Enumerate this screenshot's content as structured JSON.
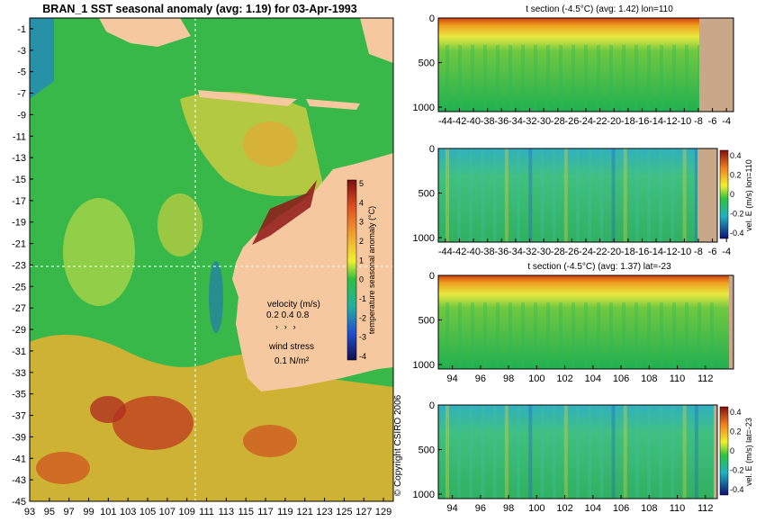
{
  "map": {
    "title": "BRAN_1 SST seasonal anomaly (avg: 1.19) for 03-Apr-1993",
    "y_ticks": [
      -1,
      -3,
      -5,
      -7,
      -9,
      -11,
      -13,
      -15,
      -17,
      -19,
      -21,
      -23,
      -25,
      -27,
      -29,
      -31,
      -33,
      -35,
      -37,
      -39,
      -41,
      -43,
      -45
    ],
    "x_ticks": [
      93,
      95,
      97,
      99,
      101,
      103,
      105,
      107,
      109,
      111,
      113,
      115,
      117,
      119,
      121,
      123,
      125,
      127,
      129
    ],
    "colorbar_label": "temperature seasonal anomaly (°C)",
    "colorbar_ticks": [
      5,
      4,
      3,
      2,
      1,
      0,
      -1,
      -2,
      -3,
      -4
    ],
    "velocity_label": "velocity (m/s)",
    "velocity_scale": "0.2 0.4 0.8",
    "wind_label": "wind stress",
    "wind_scale": "0.1 N/m²",
    "copyright": "© Copyright CSIRO 2006",
    "land_color": "#f5c8a0"
  },
  "panels": [
    {
      "title": "t section (-4.5°C) (avg: 1.42) lon=110",
      "x_ticks": [
        "-44",
        "-42",
        "-40",
        "-38",
        "-36",
        "-34",
        "-32",
        "-30",
        "-28",
        "-26",
        "-24",
        "-22",
        "-20",
        "-18",
        "-16",
        "-14",
        "-12",
        "-10",
        "-8",
        "-6",
        "-4"
      ],
      "y_ticks": [
        "0",
        "500",
        "1000"
      ],
      "cbar_label": "",
      "cbar_ticks": []
    },
    {
      "title": "",
      "x_ticks": [
        "-44",
        "-42",
        "-40",
        "-38",
        "-36",
        "-34",
        "-32",
        "-30",
        "-28",
        "-26",
        "-24",
        "-22",
        "-20",
        "-18",
        "-16",
        "-14",
        "-12",
        "-10",
        "-8",
        "-6",
        "-4"
      ],
      "y_ticks": [
        "0",
        "500",
        "1000"
      ],
      "cbar_label": "vel. E (m/s) lon=110",
      "cbar_ticks": [
        "0.4",
        "0.2",
        "0",
        "-0.2",
        "-0.4"
      ]
    },
    {
      "title": "t section (-4.5°C) (avg: 1.37) lat=-23",
      "x_ticks": [
        "94",
        "96",
        "98",
        "100",
        "102",
        "104",
        "106",
        "108",
        "110",
        "112"
      ],
      "y_ticks": [
        "0",
        "500",
        "1000"
      ],
      "cbar_label": "",
      "cbar_ticks": []
    },
    {
      "title": "",
      "x_ticks": [
        "94",
        "96",
        "98",
        "100",
        "102",
        "104",
        "106",
        "108",
        "110",
        "112"
      ],
      "y_ticks": [
        "0",
        "500",
        "1000"
      ],
      "cbar_label": "vel. E (m/s) lat=-23",
      "cbar_ticks": [
        "0.4",
        "0.2",
        "0",
        "-0.2",
        "-0.4"
      ]
    }
  ],
  "chart_data": [
    {
      "type": "heatmap",
      "title": "BRAN_1 SST seasonal anomaly (avg: 1.19) for 03-Apr-1993",
      "x_range": [
        93,
        130
      ],
      "y_range": [
        -45,
        0
      ],
      "colorbar_label": "temperature seasonal anomaly (°C)",
      "colorbar_range": [
        -4,
        5
      ]
    },
    {
      "type": "heatmap",
      "title": "t section (-4.5°C) (avg: 1.42) lon=110",
      "x_range": [
        -45,
        -3
      ],
      "y_range": [
        0,
        1050
      ]
    },
    {
      "type": "heatmap",
      "x_range": [
        -45,
        -3
      ],
      "y_range": [
        0,
        1050
      ],
      "colorbar_label": "vel. E (m/s) lon=110",
      "colorbar_range": [
        -0.4,
        0.4
      ]
    },
    {
      "type": "heatmap",
      "title": "t section (-4.5°C) (avg: 1.37) lat=-23",
      "x_range": [
        93,
        114
      ],
      "y_range": [
        0,
        1050
      ]
    },
    {
      "type": "heatmap",
      "x_range": [
        93,
        114
      ],
      "y_range": [
        0,
        1050
      ],
      "colorbar_label": "vel. E (m/s) lat=-23",
      "colorbar_range": [
        -0.4,
        0.4
      ]
    }
  ]
}
